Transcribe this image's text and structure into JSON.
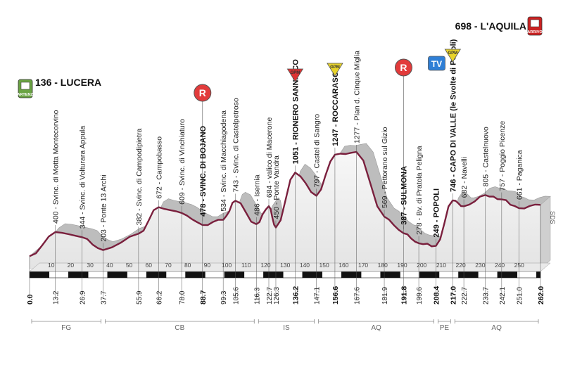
{
  "start": {
    "label": "136 - LUCERA",
    "badge": "PARTENZA"
  },
  "finish": {
    "label": "698 - L'AQUILA",
    "badge": "ARRIVO"
  },
  "sds": "SDS",
  "icons": {
    "feed": "R",
    "tv": "TV",
    "climb": "GPM"
  },
  "kmTicks": [
    "10",
    "20",
    "30",
    "40",
    "50",
    "60",
    "70",
    "80",
    "90",
    "100",
    "110",
    "120",
    "130",
    "140",
    "150",
    "160",
    "170",
    "180",
    "190",
    "200",
    "210",
    "220",
    "230",
    "240",
    "250"
  ],
  "regions": [
    "FG",
    "CB",
    "IS",
    "AQ",
    "PE",
    "AQ"
  ],
  "waypoints": [
    {
      "km": 0,
      "kmLabel": "0.0",
      "elev": 136,
      "label": "",
      "bold": true
    },
    {
      "km": 13.2,
      "kmLabel": "13.2",
      "elev": 400,
      "label": "400 - Svinc. di Motta Montecorvino",
      "bold": false
    },
    {
      "km": 26.9,
      "kmLabel": "26.9",
      "elev": 344,
      "label": "344 - Svinc. di Volturara Appula",
      "bold": false
    },
    {
      "km": 37.7,
      "kmLabel": "37.7",
      "elev": 203,
      "label": "203 - Ponte 13 Archi",
      "bold": false
    },
    {
      "km": 55.9,
      "kmLabel": "55.9",
      "elev": 382,
      "label": "382 - Svinc. di Campodipietra",
      "bold": false
    },
    {
      "km": 66.2,
      "kmLabel": "66.2",
      "elev": 672,
      "label": "672 - Campobasso",
      "bold": false
    },
    {
      "km": 78.0,
      "kmLabel": "78.0",
      "elev": 609,
      "label": "609 - Svinc. di Vinchiaturo",
      "bold": false
    },
    {
      "km": 88.7,
      "kmLabel": "88.7",
      "elev": 478,
      "label": "478 - SVINC. DI BOJANO",
      "bold": true
    },
    {
      "km": 99.3,
      "kmLabel": "99.3",
      "elev": 534,
      "label": "534 - Svinc. di Macchiagodena",
      "bold": false
    },
    {
      "km": 105.6,
      "kmLabel": "105.6",
      "elev": 743,
      "label": "743 - Svinc. di Castelpetroso",
      "bold": false
    },
    {
      "km": 116.3,
      "kmLabel": "116.3",
      "elev": 486,
      "label": "486 - Isernia",
      "bold": false
    },
    {
      "km": 122.7,
      "kmLabel": "122.7",
      "elev": 684,
      "label": "684 - valico di Macerone",
      "bold": false
    },
    {
      "km": 126.3,
      "kmLabel": "126.3",
      "elev": 450,
      "label": "450 - Ponte Vandra",
      "bold": false
    },
    {
      "km": 136.2,
      "kmLabel": "136.2",
      "elev": 1051,
      "label": "1051 - RIONERO SANNITICO",
      "bold": true
    },
    {
      "km": 147.1,
      "kmLabel": "147.1",
      "elev": 797,
      "label": "797 - Castel di Sangro",
      "bold": false
    },
    {
      "km": 156.6,
      "kmLabel": "156.6",
      "elev": 1247,
      "label": "1247 - ROCCARASO",
      "bold": true
    },
    {
      "km": 167.6,
      "kmLabel": "167.6",
      "elev": 1277,
      "label": "1277 - Pian d. Cinque Miglia",
      "bold": false
    },
    {
      "km": 181.9,
      "kmLabel": "181.9",
      "elev": 569,
      "label": "569 - Pettorano sul Gizio",
      "bold": false
    },
    {
      "km": 191.8,
      "kmLabel": "191.8",
      "elev": 387,
      "label": "387 - SULMONA",
      "bold": true
    },
    {
      "km": 199.6,
      "kmLabel": "199.6",
      "elev": 278,
      "label": "278 - Bv. di Pratola Peligna",
      "bold": false
    },
    {
      "km": 208.4,
      "kmLabel": "208.4",
      "elev": 249,
      "label": "249 - POPOLI",
      "bold": true
    },
    {
      "km": 217.0,
      "kmLabel": "217.0",
      "elev": 746,
      "label": "746 - CAPO DI VALLE (le Svolte di Popoli)",
      "bold": true
    },
    {
      "km": 222.7,
      "kmLabel": "222.7",
      "elev": 682,
      "label": "682 - Navelli",
      "bold": false
    },
    {
      "km": 233.7,
      "kmLabel": "233.7",
      "elev": 805,
      "label": "805 - Castelnuovo",
      "bold": false
    },
    {
      "km": 242.1,
      "kmLabel": "242.1",
      "elev": 757,
      "label": "757 - Poggio Picenze",
      "bold": false
    },
    {
      "km": 251.0,
      "kmLabel": "251.0",
      "elev": 661,
      "label": "661 - Paganica",
      "bold": false
    },
    {
      "km": 262.0,
      "kmLabel": "262.0",
      "elev": 698,
      "label": "",
      "bold": true
    }
  ],
  "chart_data": {
    "type": "area",
    "xlabel": "",
    "ylabel": "",
    "x": [
      0,
      13.2,
      26.9,
      37.7,
      55.9,
      66.2,
      78.0,
      88.7,
      99.3,
      105.6,
      116.3,
      122.7,
      126.3,
      136.2,
      147.1,
      156.6,
      167.6,
      181.9,
      191.8,
      199.6,
      208.4,
      217.0,
      222.7,
      233.7,
      242.1,
      251.0,
      262.0
    ],
    "y": [
      136,
      400,
      344,
      203,
      382,
      672,
      609,
      478,
      534,
      743,
      486,
      684,
      450,
      1051,
      797,
      1247,
      1277,
      569,
      387,
      278,
      249,
      746,
      682,
      805,
      757,
      661,
      698
    ],
    "xlim": [
      0,
      262
    ],
    "regions": [
      {
        "name": "FG",
        "from": 0,
        "to": 37.7
      },
      {
        "name": "CB",
        "from": 37.7,
        "to": 116.3
      },
      {
        "name": "IS",
        "from": 116.3,
        "to": 147.1
      },
      {
        "name": "AQ",
        "from": 147.1,
        "to": 208.4
      },
      {
        "name": "PE",
        "from": 208.4,
        "to": 217.0
      },
      {
        "name": "AQ",
        "from": 217.0,
        "to": 262.0
      }
    ],
    "markers": [
      {
        "type": "R",
        "km": 88.7
      },
      {
        "type": "GPM",
        "km": 136.2
      },
      {
        "type": "GPM",
        "km": 156.6
      },
      {
        "type": "R",
        "km": 191.8
      },
      {
        "type": "TV",
        "km": 208.4
      },
      {
        "type": "GPM",
        "km": 217.0
      }
    ]
  }
}
